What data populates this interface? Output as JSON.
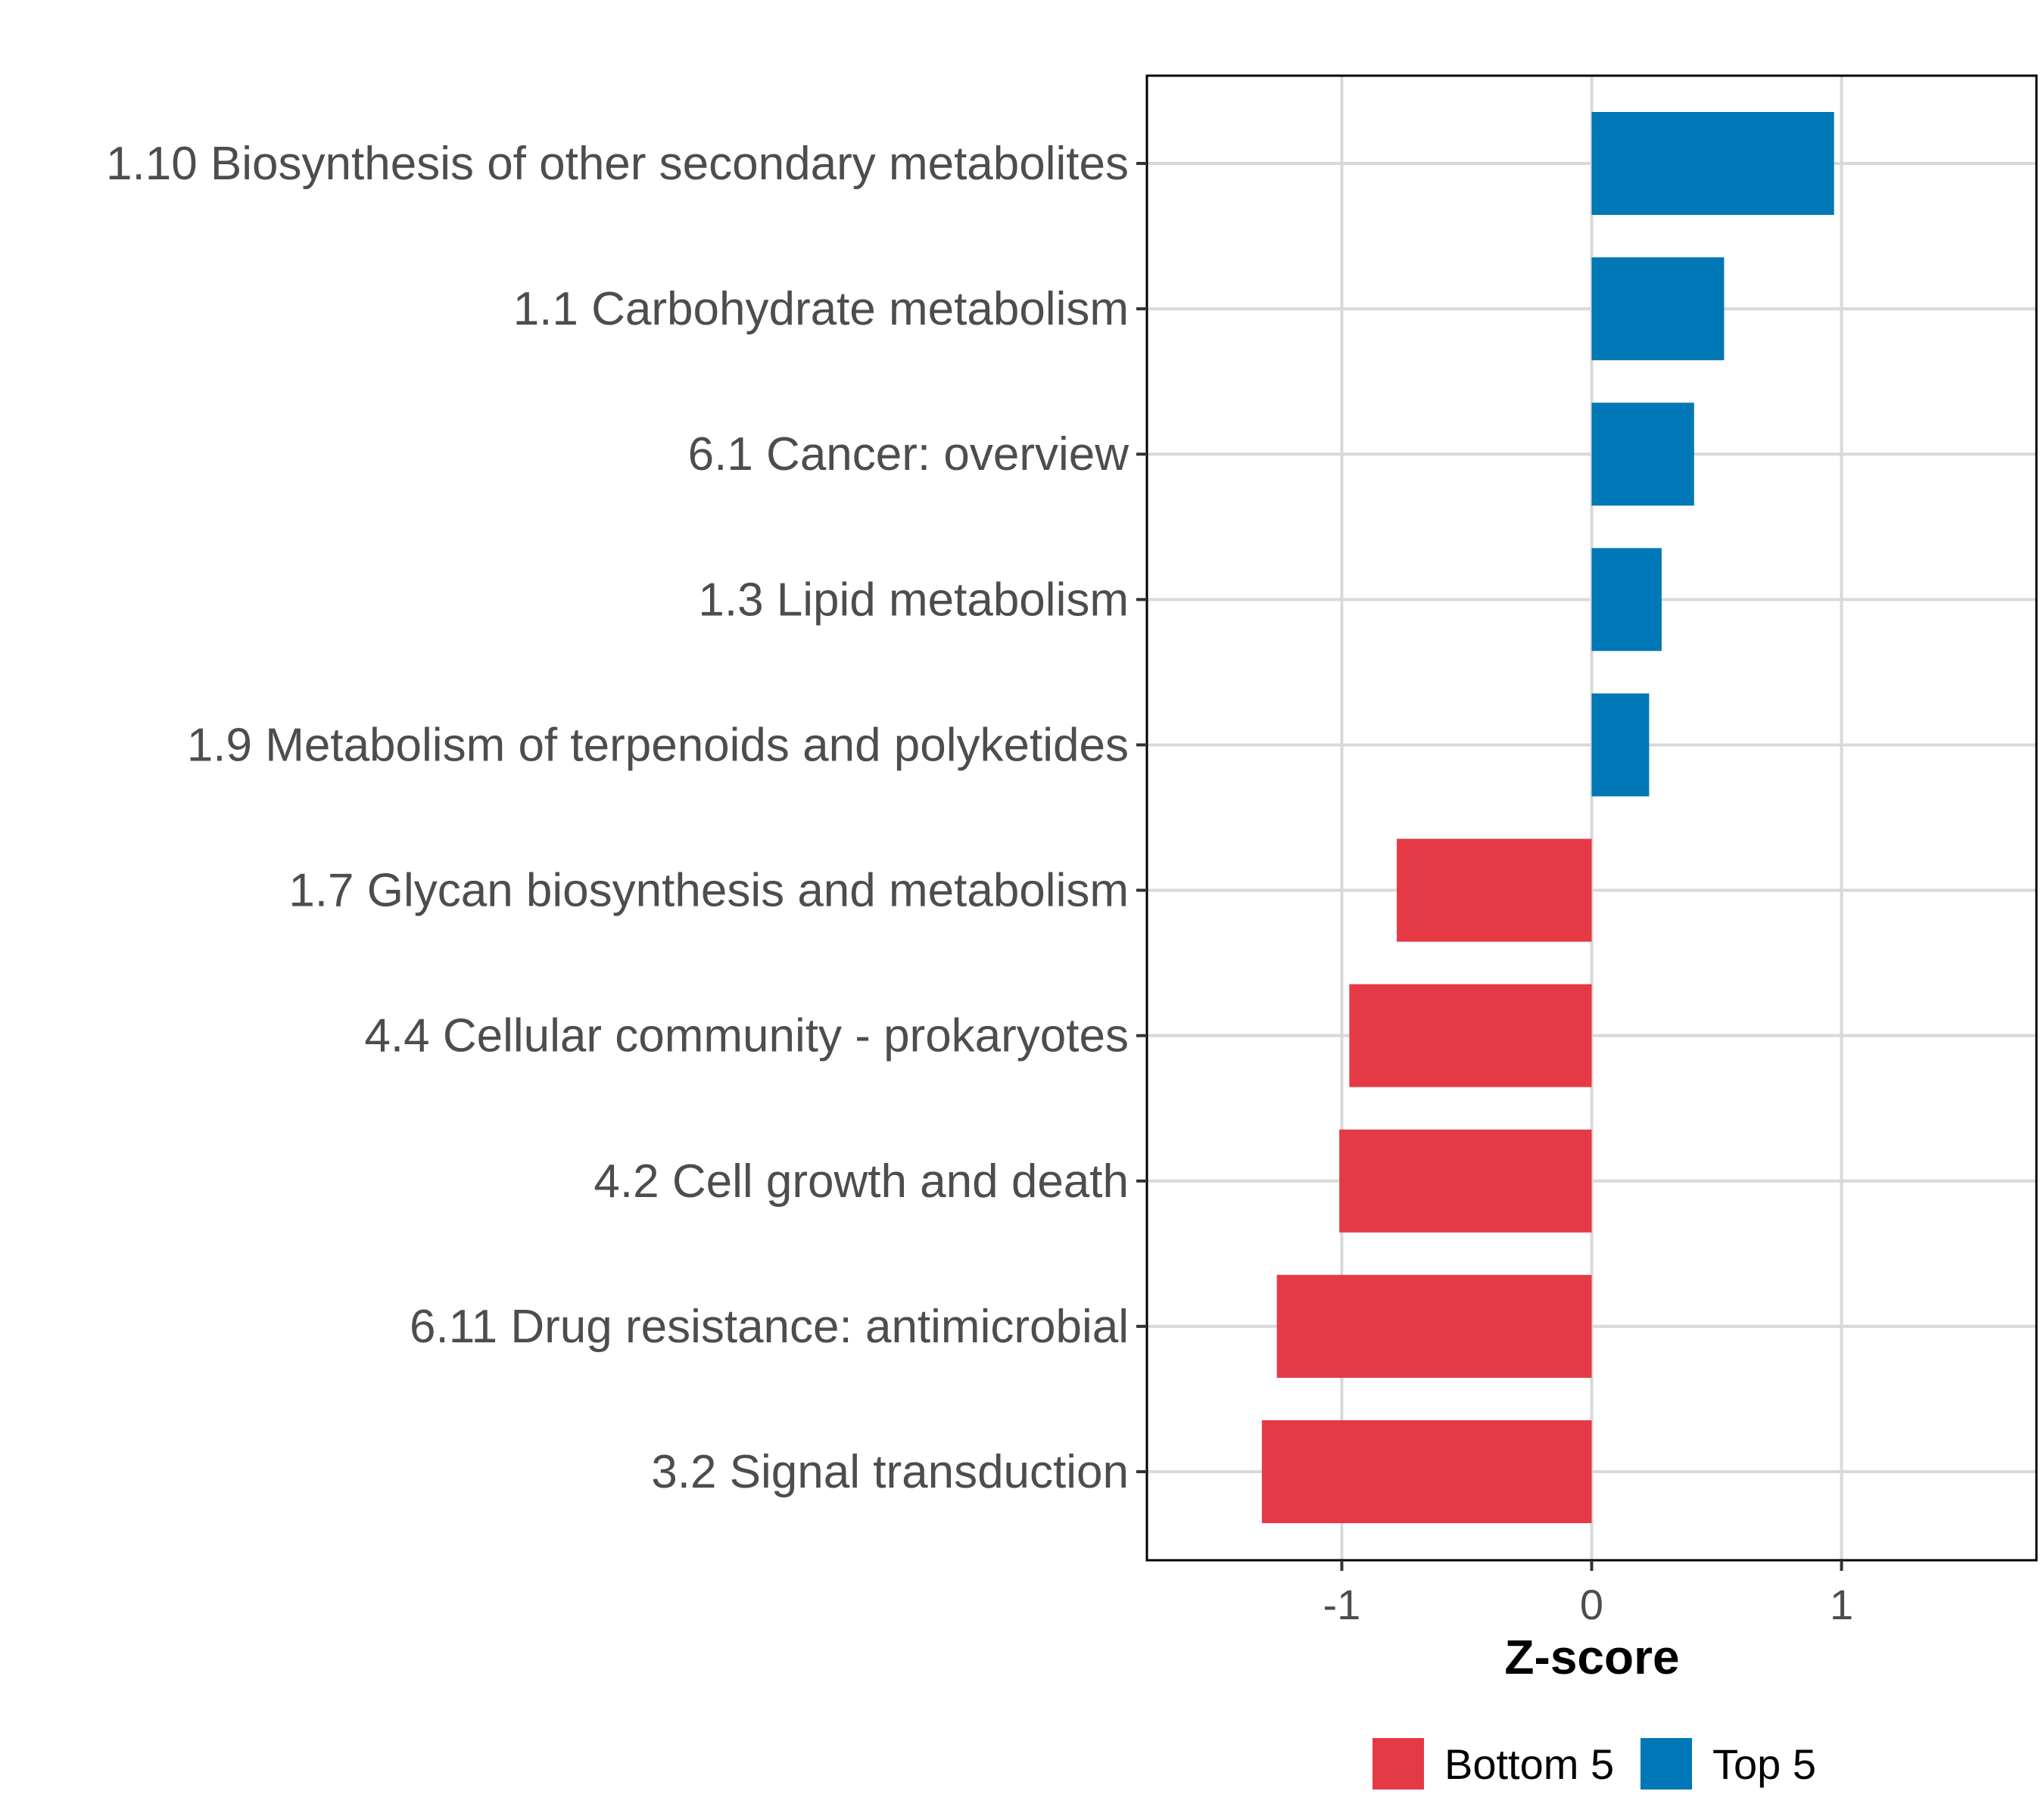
{
  "chart_data": {
    "type": "bar",
    "orientation": "horizontal",
    "categories": [
      "1.10 Biosynthesis of other secondary metabolites",
      "1.1 Carbohydrate metabolism",
      "6.1 Cancer: overview",
      "1.3 Lipid metabolism",
      "1.9 Metabolism of terpenoids and polyketides",
      "1.7 Glycan biosynthesis and metabolism",
      "4.4 Cellular community - prokaryotes",
      "4.2 Cell growth and death",
      "6.11 Drug resistance: antimicrobial",
      "3.2 Signal transduction"
    ],
    "values": [
      0.97,
      0.53,
      0.41,
      0.28,
      0.23,
      -0.78,
      -0.97,
      -1.01,
      -1.26,
      -1.32
    ],
    "groups": [
      "Top 5",
      "Top 5",
      "Top 5",
      "Top 5",
      "Top 5",
      "Bottom 5",
      "Bottom 5",
      "Bottom 5",
      "Bottom 5",
      "Bottom 5"
    ],
    "xlabel": "Z-score",
    "ylabel": "",
    "xlim": [
      -1.78,
      1.78
    ],
    "xticks": [
      -1,
      0,
      1
    ],
    "xtick_labels": [
      "-1",
      "0",
      "1"
    ],
    "grid": true,
    "legend": {
      "position": "bottom",
      "entries": [
        {
          "label": "Bottom 5",
          "color": "#E63946"
        },
        {
          "label": "Top 5",
          "color": "#0077B6"
        }
      ]
    }
  },
  "colors": {
    "Bottom 5": "#E63946",
    "Top 5": "#0077B6",
    "grid": "#d9d9d9",
    "panel_border": "#000000"
  }
}
